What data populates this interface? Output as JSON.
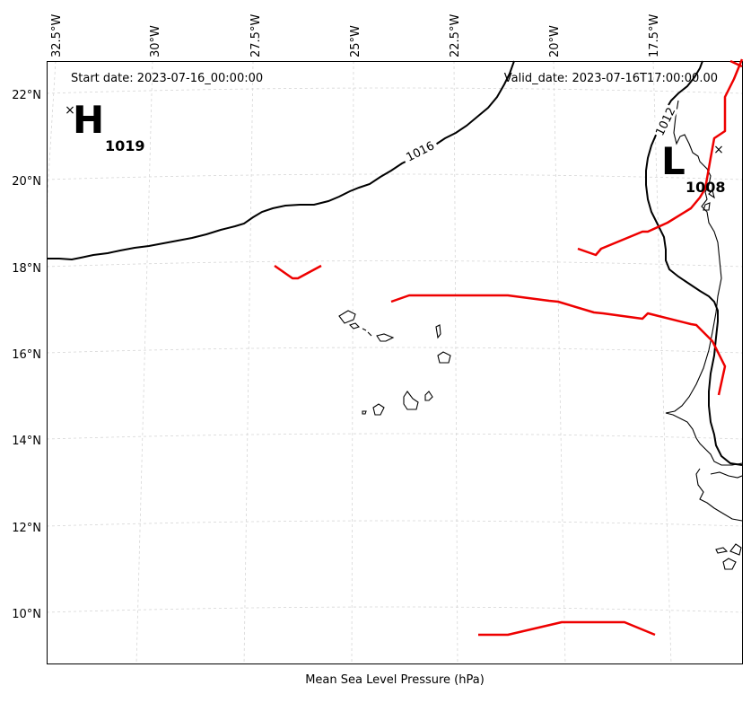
{
  "map": {
    "start_date": "Start date: 2023-07-16_00:00:00",
    "valid_date": "Valid_date: 2023-07-16T17:00:00.00",
    "caption": "Mean Sea Level Pressure (hPa)",
    "lon_ticks": [
      "32.5°W",
      "30°W",
      "27.5°W",
      "25°W",
      "22.5°W",
      "20°W",
      "17.5°W"
    ],
    "lat_ticks": [
      "22°N",
      "20°N",
      "18°N",
      "16°N",
      "14°N",
      "12°N",
      "10°N"
    ],
    "high": {
      "letter": "H",
      "value": "1019",
      "marker": "×"
    },
    "low": {
      "letter": "L",
      "value": "1008",
      "marker": "×"
    },
    "isobars": [
      {
        "value": "1016",
        "color": "#000000"
      },
      {
        "value": "1012",
        "color": "#000000"
      }
    ],
    "front_color": "#ee0000",
    "coast_color": "#000000",
    "grid_color": "#cccccc"
  }
}
